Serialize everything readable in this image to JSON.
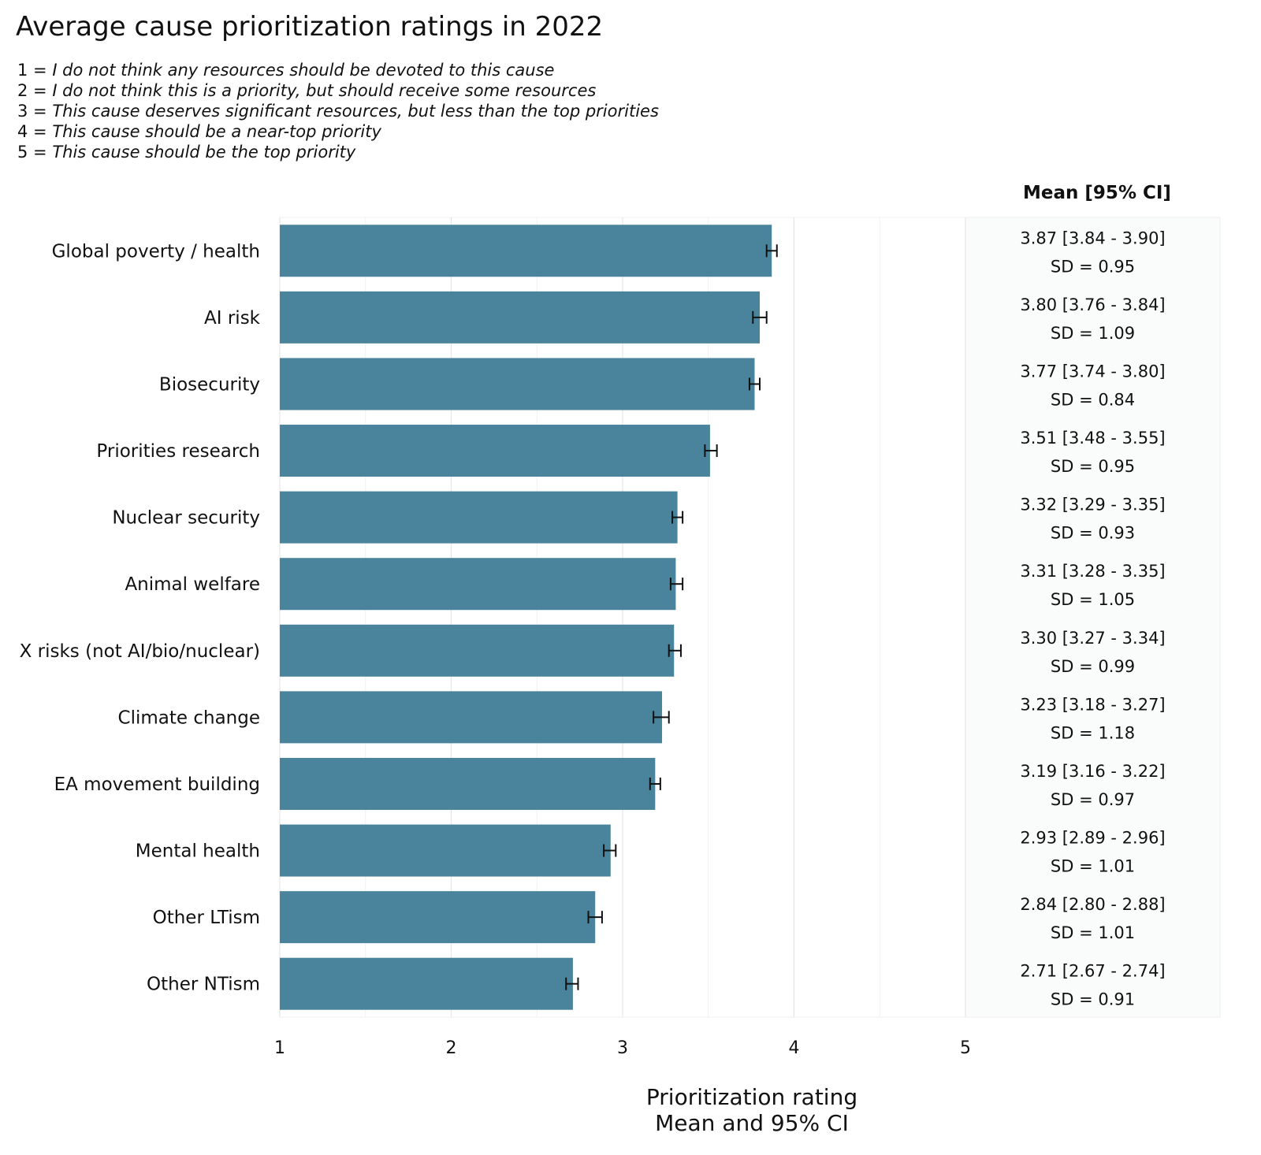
{
  "chart_data": {
    "type": "bar",
    "orientation": "horizontal",
    "title": "Average cause prioritization ratings in 2022",
    "subtitle_lines": [
      {
        "num": "1 = ",
        "text": "I do not think any resources should be devoted to this cause"
      },
      {
        "num": "2 = ",
        "text": "I do not think this is a priority, but should receive some resources"
      },
      {
        "num": "3 = ",
        "text": "This cause deserves significant resources, but less than the top priorities"
      },
      {
        "num": "4 = ",
        "text": "This cause should be a near-top priority"
      },
      {
        "num": "5 = ",
        "text": "This cause should be the top priority"
      }
    ],
    "xlabel_line1": "Prioritization rating",
    "xlabel_line2": "Mean and 95% CI",
    "ylabel": "",
    "xlim": [
      1,
      5
    ],
    "xticks": [
      "1",
      "2",
      "3",
      "4",
      "5"
    ],
    "grid": true,
    "table_header": "Mean [95% CI]",
    "bar_color": "#4a849c",
    "categories": [
      "Global poverty / health",
      "AI risk",
      "Biosecurity",
      "Priorities research",
      "Nuclear security",
      "Animal welfare",
      "X risks (not AI/bio/nuclear)",
      "Climate change",
      "EA movement building",
      "Mental health",
      "Other LTism",
      "Other NTism"
    ],
    "values": [
      3.87,
      3.8,
      3.77,
      3.51,
      3.32,
      3.31,
      3.3,
      3.23,
      3.19,
      2.93,
      2.84,
      2.71
    ],
    "ci_low": [
      3.84,
      3.76,
      3.74,
      3.48,
      3.29,
      3.28,
      3.27,
      3.18,
      3.16,
      2.89,
      2.8,
      2.67
    ],
    "ci_high": [
      3.9,
      3.84,
      3.8,
      3.55,
      3.35,
      3.35,
      3.34,
      3.27,
      3.22,
      2.96,
      2.88,
      2.74
    ],
    "ci_labels": [
      "3.87 [3.84 - 3.90]",
      "3.80 [3.76 - 3.84]",
      "3.77 [3.74 - 3.80]",
      "3.51 [3.48 - 3.55]",
      "3.32 [3.29 - 3.35]",
      "3.31 [3.28 - 3.35]",
      "3.30 [3.27 - 3.34]",
      "3.23 [3.18 - 3.27]",
      "3.19 [3.16 - 3.22]",
      "2.93 [2.89 - 2.96]",
      "2.84 [2.80 - 2.88]",
      "2.71 [2.67 - 2.74]"
    ],
    "sd_labels": [
      "SD = 0.95",
      "SD = 1.09",
      "SD = 0.84",
      "SD = 0.95",
      "SD = 0.93",
      "SD = 1.05",
      "SD = 0.99",
      "SD = 1.18",
      "SD = 0.97",
      "SD = 1.01",
      "SD = 1.01",
      "SD = 0.91"
    ]
  }
}
